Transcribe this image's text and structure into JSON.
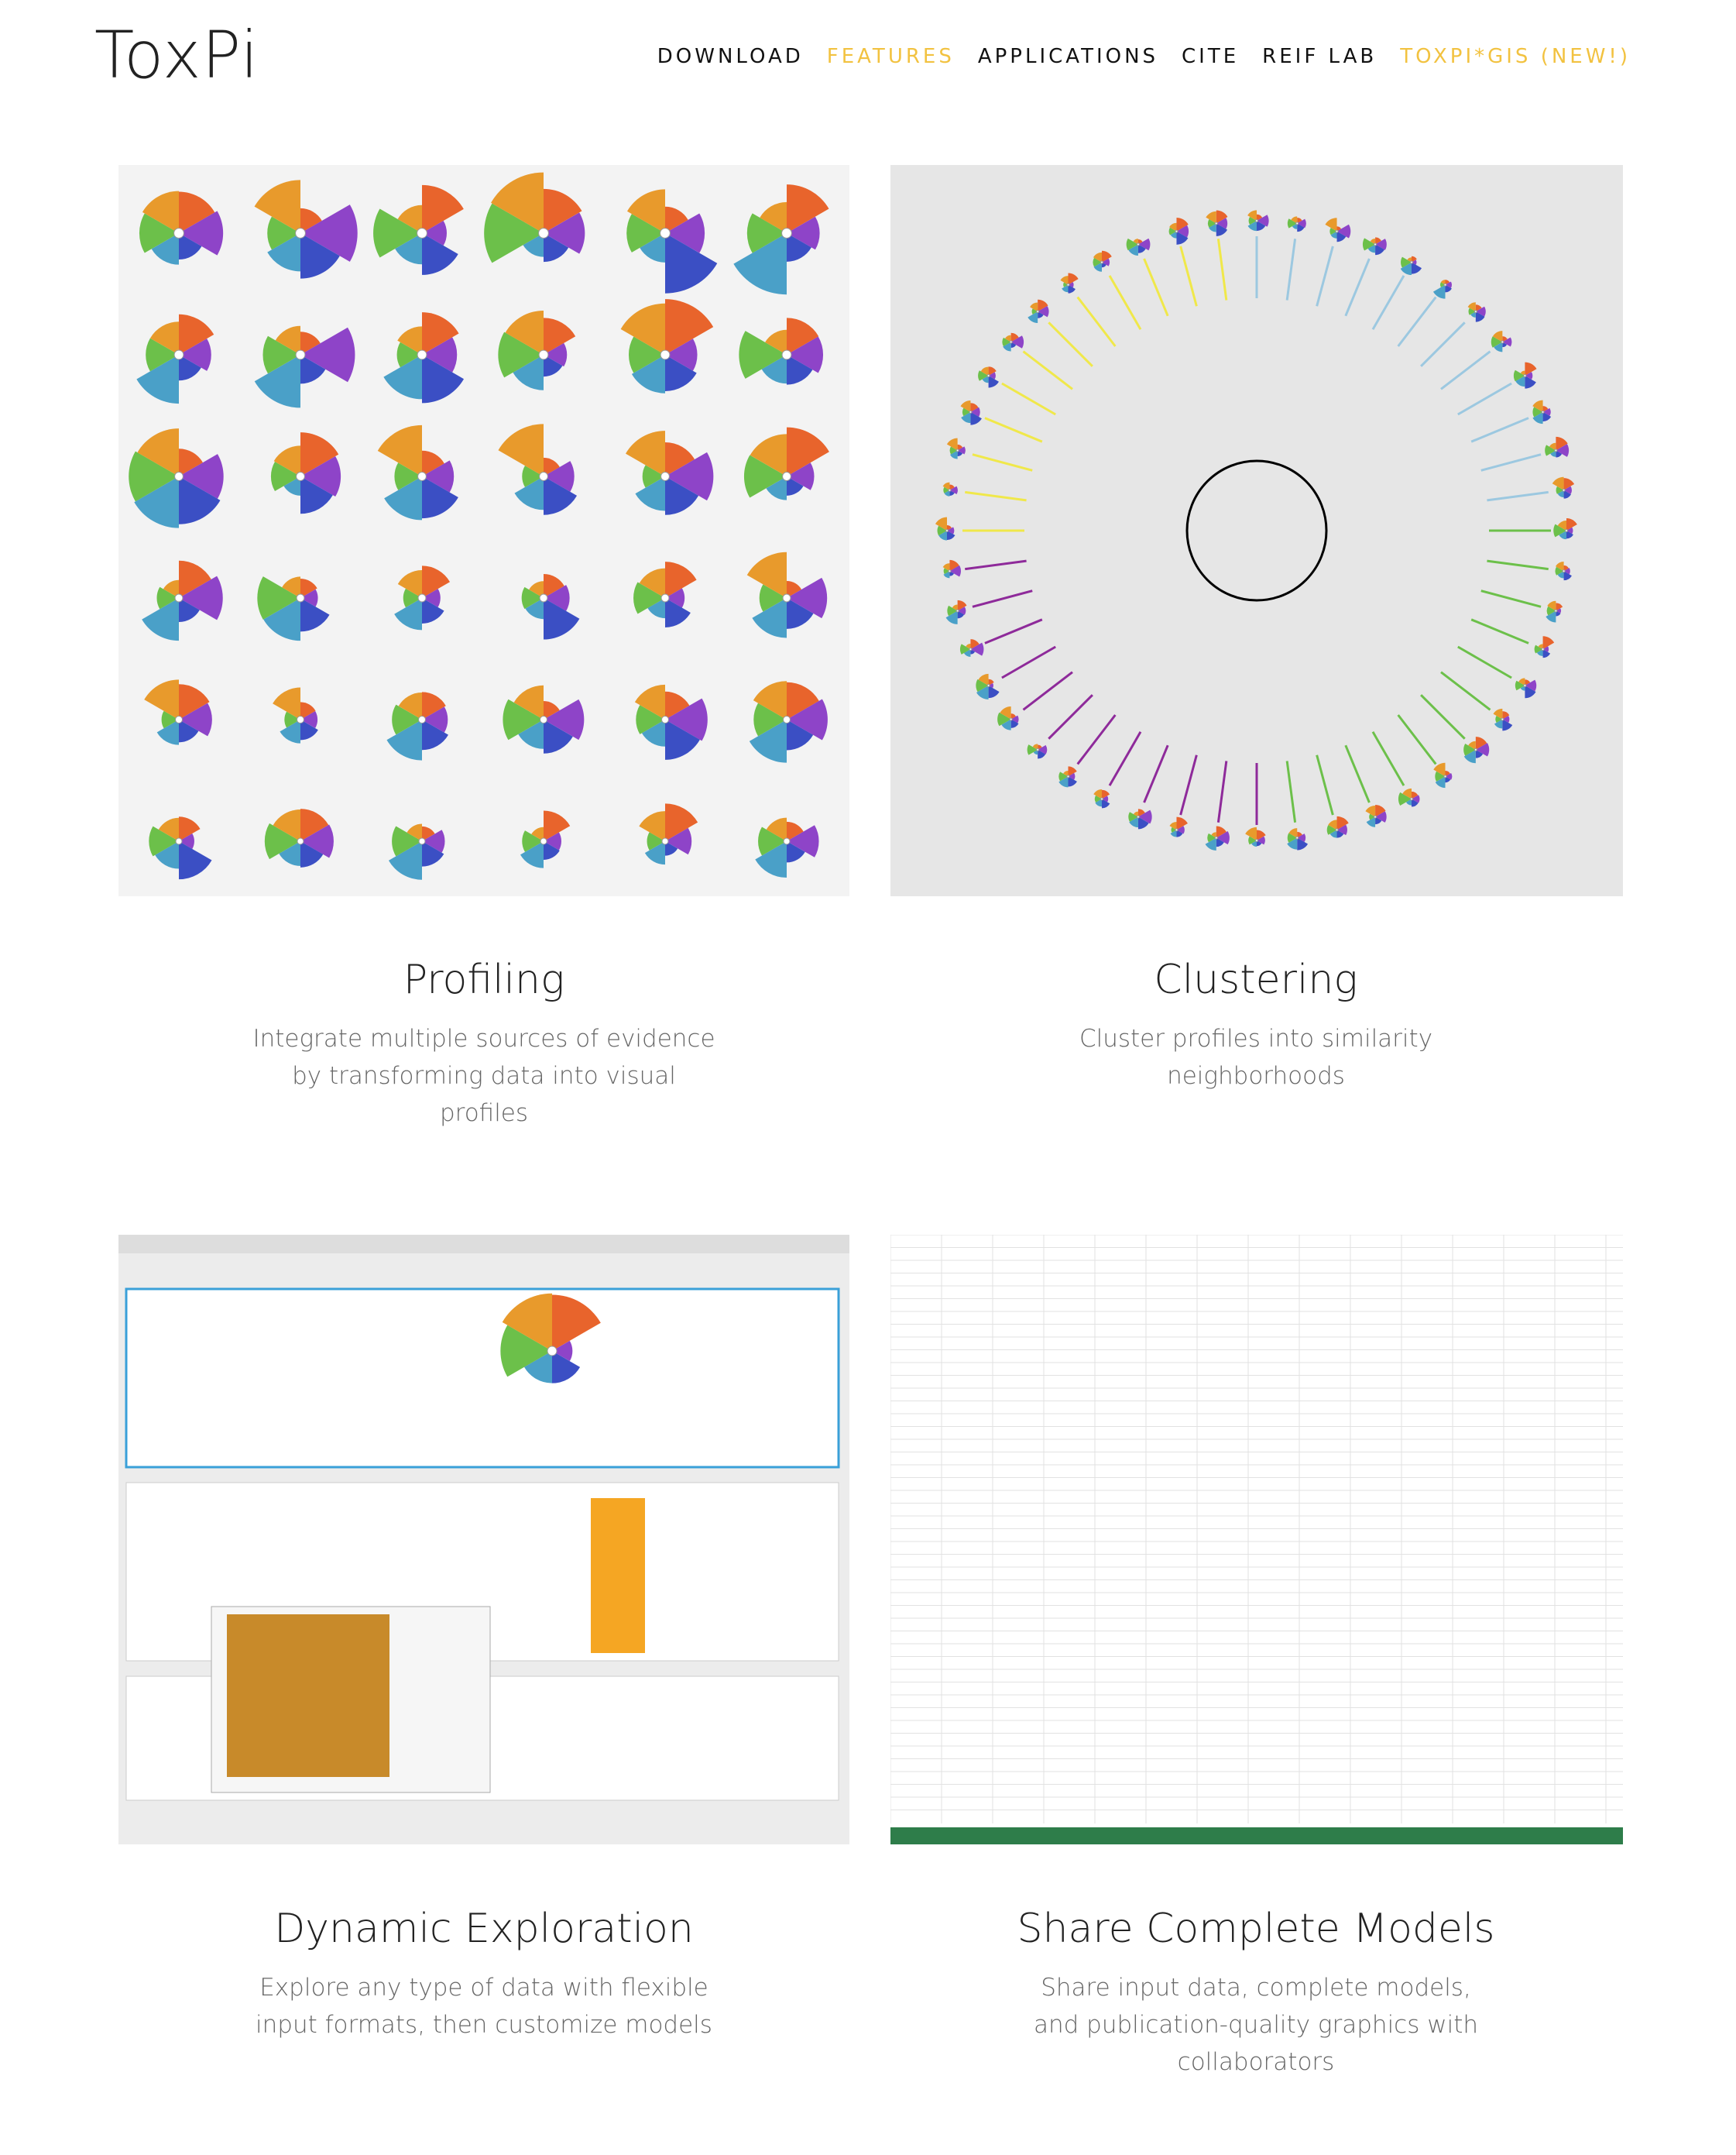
{
  "header": {
    "logo": "ToxPi",
    "nav": [
      {
        "label": "DOWNLOAD",
        "highlight": false
      },
      {
        "label": "FEATURES",
        "highlight": true
      },
      {
        "label": "APPLICATIONS",
        "highlight": false
      },
      {
        "label": "CITE",
        "highlight": false
      },
      {
        "label": "REIF LAB",
        "highlight": false
      },
      {
        "label": "TOXPI*GIS (NEW!)",
        "highlight": true
      }
    ]
  },
  "features": [
    {
      "title": "Profiling",
      "description": "Integrate multiple sources of evidence by transforming data into visual profiles"
    },
    {
      "title": "Clustering",
      "description": "Cluster profiles into similarity neighborhoods"
    },
    {
      "title": "Dynamic Exploration",
      "description": "Explore any type of data with flexible input formats, then customize models"
    },
    {
      "title": "Share Complete Models",
      "description": "Share input data, complete models, and publication-quality graphics with collaborators"
    }
  ]
}
